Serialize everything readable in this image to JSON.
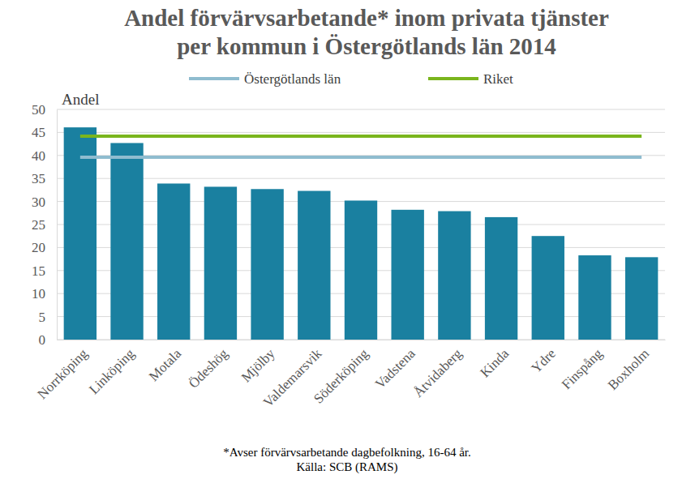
{
  "chart_data": {
    "type": "bar",
    "title": "Andel förvärvsarbetande* inom privata tjänster\nper kommun i Östergötlands län 2014",
    "ylabel": "Andel",
    "annotations": [
      "*Avser förvärvsarbetande dagbefolkning, 16-64 år.",
      "Källa: SCB (RAMS)"
    ],
    "categories": [
      "Norrköping",
      "Linköping",
      "Motala",
      "Ödeshög",
      "Mjölby",
      "Valdemarsvik",
      "Söderköping",
      "Vadstena",
      "Åtvidaberg",
      "Kinda",
      "Ydre",
      "Finspång",
      "Boxholm"
    ],
    "values": [
      46.1,
      42.7,
      33.9,
      33.2,
      32.7,
      32.3,
      30.2,
      28.2,
      27.9,
      26.6,
      22.5,
      18.3,
      17.9
    ],
    "color": "#1a80a0",
    "series": [
      {
        "name": "Östergötlands län",
        "type": "line",
        "color": "#8fbccf",
        "values": [
          39.6,
          39.6,
          39.6,
          39.6,
          39.6,
          39.6,
          39.6,
          39.6,
          39.6,
          39.6,
          39.6,
          39.6,
          39.6
        ]
      },
      {
        "name": "Riket",
        "type": "line",
        "color": "#7ab51d",
        "values": [
          44.2,
          44.2,
          44.2,
          44.2,
          44.2,
          44.2,
          44.2,
          44.2,
          44.2,
          44.2,
          44.2,
          44.2,
          44.2
        ]
      }
    ],
    "ylim": [
      0,
      50
    ],
    "yticks": [
      0,
      5,
      10,
      15,
      20,
      25,
      30,
      35,
      40,
      45,
      50
    ],
    "grid": true,
    "legend": "top"
  }
}
